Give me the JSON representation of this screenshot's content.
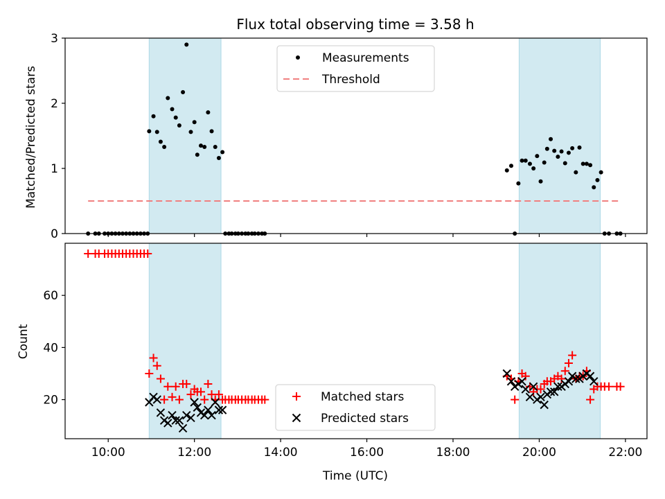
{
  "chart_data": [
    {
      "type": "scatter",
      "title": "Flux total observing time = 3.58 h",
      "ylabel": "Matched/Predicted stars",
      "xlabel": "",
      "xlim": [
        "09:00",
        "22:30"
      ],
      "ylim": [
        0,
        3
      ],
      "yticks": [
        0,
        1,
        2,
        3
      ],
      "xticks": [
        "10:00",
        "12:00",
        "14:00",
        "16:00",
        "18:00",
        "20:00",
        "22:00"
      ],
      "shaded_intervals": [
        [
          "10:57",
          "12:37"
        ],
        [
          "19:32",
          "21:25"
        ]
      ],
      "shade_color": "#add8e6",
      "legend_position": "upper-center",
      "series": [
        {
          "name": "Measurements",
          "marker": "dot",
          "color": "#000000",
          "points": [
            [
              "09:32",
              0
            ],
            [
              "09:42",
              0
            ],
            [
              "09:47",
              0
            ],
            [
              "09:55",
              0
            ],
            [
              "10:00",
              0
            ],
            [
              "10:05",
              0
            ],
            [
              "10:10",
              0
            ],
            [
              "10:15",
              0
            ],
            [
              "10:20",
              0
            ],
            [
              "10:25",
              0
            ],
            [
              "10:30",
              0
            ],
            [
              "10:35",
              0
            ],
            [
              "10:40",
              0
            ],
            [
              "10:45",
              0
            ],
            [
              "10:50",
              0
            ],
            [
              "10:55",
              0
            ],
            [
              "10:57",
              1.57
            ],
            [
              "11:03",
              1.8
            ],
            [
              "11:08",
              1.56
            ],
            [
              "11:13",
              1.41
            ],
            [
              "11:18",
              1.33
            ],
            [
              "11:23",
              2.08
            ],
            [
              "11:29",
              1.91
            ],
            [
              "11:34",
              1.78
            ],
            [
              "11:39",
              1.66
            ],
            [
              "11:44",
              2.17
            ],
            [
              "11:49",
              2.9
            ],
            [
              "11:55",
              1.56
            ],
            [
              "12:00",
              1.71
            ],
            [
              "12:04",
              1.21
            ],
            [
              "12:09",
              1.35
            ],
            [
              "12:14",
              1.33
            ],
            [
              "12:19",
              1.86
            ],
            [
              "12:24",
              1.57
            ],
            [
              "12:29",
              1.33
            ],
            [
              "12:34",
              1.16
            ],
            [
              "12:39",
              1.25
            ],
            [
              "12:43",
              0
            ],
            [
              "12:48",
              0
            ],
            [
              "12:52",
              0
            ],
            [
              "12:57",
              0
            ],
            [
              "13:01",
              0
            ],
            [
              "13:06",
              0
            ],
            [
              "13:11",
              0
            ],
            [
              "13:15",
              0
            ],
            [
              "13:20",
              0
            ],
            [
              "13:24",
              0
            ],
            [
              "13:29",
              0
            ],
            [
              "13:34",
              0
            ],
            [
              "13:38",
              0
            ],
            [
              "19:15",
              0.97
            ],
            [
              "19:21",
              1.04
            ],
            [
              "19:26",
              0
            ],
            [
              "19:31",
              0.77
            ],
            [
              "19:36",
              1.12
            ],
            [
              "19:41",
              1.12
            ],
            [
              "19:47",
              1.07
            ],
            [
              "19:52",
              1.0
            ],
            [
              "19:57",
              1.19
            ],
            [
              "20:02",
              0.8
            ],
            [
              "20:07",
              1.09
            ],
            [
              "20:11",
              1.3
            ],
            [
              "20:16",
              1.45
            ],
            [
              "20:21",
              1.27
            ],
            [
              "20:26",
              1.18
            ],
            [
              "20:31",
              1.26
            ],
            [
              "20:36",
              1.08
            ],
            [
              "20:41",
              1.24
            ],
            [
              "20:46",
              1.31
            ],
            [
              "20:51",
              0.94
            ],
            [
              "20:56",
              1.32
            ],
            [
              "21:01",
              1.07
            ],
            [
              "21:06",
              1.07
            ],
            [
              "21:11",
              1.05
            ],
            [
              "21:16",
              0.71
            ],
            [
              "21:21",
              0.82
            ],
            [
              "21:26",
              0.94
            ],
            [
              "21:31",
              0
            ],
            [
              "21:37",
              0
            ],
            [
              "21:48",
              0
            ],
            [
              "21:53",
              0
            ]
          ]
        },
        {
          "name": "Threshold",
          "line": "dashed",
          "color": "#f08080",
          "x": [
            "09:32",
            "21:53"
          ],
          "y": [
            0.5,
            0.5
          ]
        }
      ]
    },
    {
      "type": "scatter",
      "title": "",
      "xlabel": "Time (UTC)",
      "ylabel": "Count",
      "xlim": [
        "09:00",
        "22:30"
      ],
      "ylim": [
        5,
        80
      ],
      "yticks": [
        20,
        40,
        60
      ],
      "xticks": [
        "10:00",
        "12:00",
        "14:00",
        "16:00",
        "18:00",
        "20:00",
        "22:00"
      ],
      "shaded_intervals": [
        [
          "10:57",
          "12:37"
        ],
        [
          "19:32",
          "21:25"
        ]
      ],
      "shade_color": "#add8e6",
      "legend_position": "lower-center",
      "series": [
        {
          "name": "Matched stars",
          "marker": "plus",
          "color": "#ff0000",
          "points": [
            [
              "09:32",
              76
            ],
            [
              "09:42",
              76
            ],
            [
              "09:47",
              76
            ],
            [
              "09:55",
              76
            ],
            [
              "10:00",
              76
            ],
            [
              "10:05",
              76
            ],
            [
              "10:10",
              76
            ],
            [
              "10:15",
              76
            ],
            [
              "10:20",
              76
            ],
            [
              "10:25",
              76
            ],
            [
              "10:30",
              76
            ],
            [
              "10:35",
              76
            ],
            [
              "10:40",
              76
            ],
            [
              "10:45",
              76
            ],
            [
              "10:50",
              76
            ],
            [
              "10:55",
              76
            ],
            [
              "10:57",
              30
            ],
            [
              "11:03",
              36
            ],
            [
              "11:08",
              33
            ],
            [
              "11:13",
              28
            ],
            [
              "11:18",
              20
            ],
            [
              "11:23",
              25
            ],
            [
              "11:29",
              21
            ],
            [
              "11:34",
              25
            ],
            [
              "11:39",
              20
            ],
            [
              "11:44",
              26
            ],
            [
              "11:49",
              26
            ],
            [
              "11:55",
              22
            ],
            [
              "12:00",
              24
            ],
            [
              "12:04",
              23
            ],
            [
              "12:09",
              23
            ],
            [
              "12:14",
              20
            ],
            [
              "12:19",
              26
            ],
            [
              "12:24",
              22
            ],
            [
              "12:29",
              20
            ],
            [
              "12:34",
              22
            ],
            [
              "12:39",
              20
            ],
            [
              "12:43",
              20
            ],
            [
              "12:48",
              20
            ],
            [
              "12:52",
              20
            ],
            [
              "12:57",
              20
            ],
            [
              "13:01",
              20
            ],
            [
              "13:06",
              20
            ],
            [
              "13:11",
              20
            ],
            [
              "13:15",
              20
            ],
            [
              "13:20",
              20
            ],
            [
              "13:24",
              20
            ],
            [
              "13:29",
              20
            ],
            [
              "13:34",
              20
            ],
            [
              "13:38",
              20
            ],
            [
              "19:15",
              29
            ],
            [
              "19:21",
              28
            ],
            [
              "19:26",
              20
            ],
            [
              "19:31",
              27
            ],
            [
              "19:36",
              30
            ],
            [
              "19:41",
              29
            ],
            [
              "19:47",
              25
            ],
            [
              "19:52",
              23
            ],
            [
              "19:57",
              24
            ],
            [
              "20:02",
              24
            ],
            [
              "20:07",
              26
            ],
            [
              "20:11",
              27
            ],
            [
              "20:16",
              27
            ],
            [
              "20:21",
              28
            ],
            [
              "20:26",
              29
            ],
            [
              "20:31",
              28
            ],
            [
              "20:36",
              31
            ],
            [
              "20:41",
              34
            ],
            [
              "20:46",
              37
            ],
            [
              "20:51",
              28
            ],
            [
              "20:56",
              29
            ],
            [
              "21:01",
              29
            ],
            [
              "21:06",
              31
            ],
            [
              "21:11",
              20
            ],
            [
              "21:16",
              24
            ],
            [
              "21:21",
              25
            ],
            [
              "21:26",
              25
            ],
            [
              "21:31",
              25
            ],
            [
              "21:37",
              25
            ],
            [
              "21:48",
              25
            ],
            [
              "21:53",
              25
            ]
          ]
        },
        {
          "name": "Predicted stars",
          "marker": "cross",
          "color": "#000000",
          "points": [
            [
              "10:57",
              19
            ],
            [
              "11:03",
              21
            ],
            [
              "11:08",
              20
            ],
            [
              "11:13",
              15
            ],
            [
              "11:18",
              12
            ],
            [
              "11:23",
              11
            ],
            [
              "11:29",
              14
            ],
            [
              "11:34",
              12
            ],
            [
              "11:39",
              12
            ],
            [
              "11:44",
              9
            ],
            [
              "11:49",
              14
            ],
            [
              "11:55",
              13
            ],
            [
              "12:00",
              19
            ],
            [
              "12:04",
              17
            ],
            [
              "12:09",
              15
            ],
            [
              "12:14",
              14
            ],
            [
              "12:19",
              16
            ],
            [
              "12:24",
              14
            ],
            [
              "12:29",
              19
            ],
            [
              "12:34",
              16
            ],
            [
              "12:39",
              16
            ],
            [
              "19:15",
              30
            ],
            [
              "19:21",
              27
            ],
            [
              "19:26",
              25
            ],
            [
              "19:31",
              26
            ],
            [
              "19:36",
              27
            ],
            [
              "19:41",
              24
            ],
            [
              "19:47",
              21
            ],
            [
              "19:52",
              25
            ],
            [
              "19:57",
              20
            ],
            [
              "20:02",
              21
            ],
            [
              "20:07",
              18
            ],
            [
              "20:11",
              22
            ],
            [
              "20:16",
              23
            ],
            [
              "20:21",
              23
            ],
            [
              "20:26",
              25
            ],
            [
              "20:31",
              25
            ],
            [
              "20:36",
              26
            ],
            [
              "20:41",
              27
            ],
            [
              "20:46",
              29
            ],
            [
              "20:51",
              28
            ],
            [
              "20:56",
              28
            ],
            [
              "21:01",
              29
            ],
            [
              "21:06",
              30
            ],
            [
              "21:11",
              29
            ],
            [
              "21:16",
              27
            ]
          ]
        }
      ]
    }
  ]
}
